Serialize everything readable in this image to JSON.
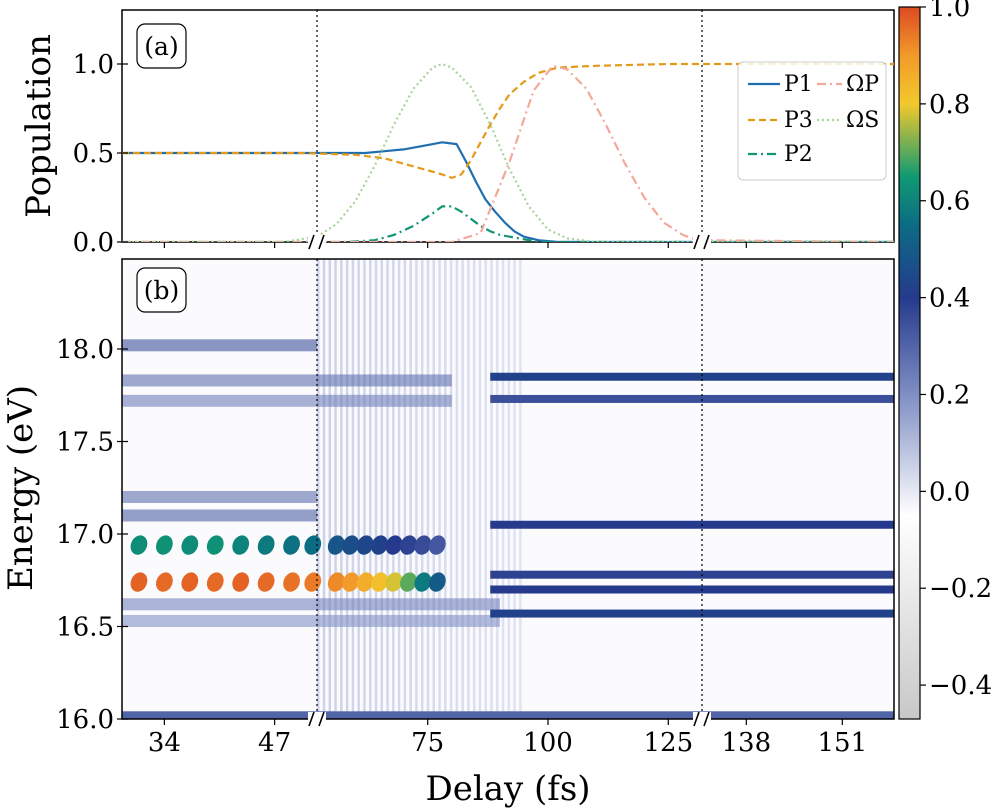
{
  "chart_data": [
    {
      "panel": "a",
      "panel_label": "(a)",
      "type": "line",
      "ylabel": "Population",
      "yticks": [
        "0.0",
        "0.5",
        "1.0"
      ],
      "ylim": [
        0,
        1.3
      ],
      "x_segments": [
        [
          29,
          52
        ],
        [
          52,
          132
        ],
        [
          132,
          158
        ]
      ],
      "x_breaks": [
        52,
        132
      ],
      "grid": false,
      "legend_position": "top-right",
      "legend": {
        "P1": "P1",
        "P3": "P3",
        "P2": "P2",
        "OmegaP": "ΩP",
        "OmegaS": "ΩS"
      },
      "series": [
        {
          "key": "P1",
          "color": "#1f6fb0",
          "dash": "solid",
          "x": [
            29,
            50,
            58,
            62,
            66,
            70,
            74,
            78,
            81,
            83,
            85,
            87,
            89,
            91,
            93,
            95,
            98,
            102,
            110,
            158
          ],
          "y": [
            0.5,
            0.5,
            0.5,
            0.5,
            0.51,
            0.52,
            0.54,
            0.56,
            0.55,
            0.45,
            0.34,
            0.24,
            0.17,
            0.11,
            0.06,
            0.03,
            0.01,
            0.0,
            0.0,
            0.0
          ]
        },
        {
          "key": "P3",
          "color": "#e39a1b",
          "dash": "dashed",
          "x": [
            29,
            50,
            60,
            66,
            70,
            74,
            78,
            80,
            82,
            84,
            86,
            88,
            90,
            92,
            95,
            98,
            102,
            110,
            125,
            158
          ],
          "y": [
            0.5,
            0.5,
            0.49,
            0.47,
            0.44,
            0.41,
            0.38,
            0.36,
            0.38,
            0.46,
            0.56,
            0.66,
            0.75,
            0.83,
            0.9,
            0.95,
            0.98,
            0.99,
            1.0,
            1.0
          ]
        },
        {
          "key": "P2",
          "color": "#109673",
          "dash": "dashdot",
          "x": [
            29,
            58,
            64,
            68,
            72,
            76,
            78,
            80,
            82,
            84,
            86,
            88,
            90,
            94,
            98,
            158
          ],
          "y": [
            0.0,
            0.0,
            0.01,
            0.04,
            0.09,
            0.16,
            0.2,
            0.2,
            0.17,
            0.13,
            0.09,
            0.06,
            0.04,
            0.02,
            0.0,
            0.0
          ]
        },
        {
          "key": "OmegaP",
          "color": "#f2a89a",
          "dash": "dashdot",
          "x": [
            29,
            80,
            86,
            92,
            97,
            101,
            104,
            108,
            112,
            116,
            120,
            124,
            128,
            131,
            158
          ],
          "y": [
            0.0,
            0.0,
            0.05,
            0.45,
            0.85,
            0.99,
            0.97,
            0.86,
            0.66,
            0.44,
            0.25,
            0.11,
            0.04,
            0.01,
            0.0
          ]
        },
        {
          "key": "OmegaS",
          "color": "#a8d49a",
          "dash": "dotted",
          "x": [
            29,
            48,
            52,
            56,
            60,
            64,
            68,
            72,
            76,
            78,
            80,
            84,
            88,
            92,
            96,
            100,
            104,
            110,
            158
          ],
          "y": [
            0.0,
            0.0,
            0.03,
            0.1,
            0.23,
            0.43,
            0.66,
            0.86,
            0.98,
            1.0,
            0.98,
            0.87,
            0.66,
            0.41,
            0.2,
            0.07,
            0.02,
            0.0,
            0.0
          ]
        }
      ]
    },
    {
      "panel": "b",
      "panel_label": "(b)",
      "type": "heatmap",
      "xlabel": "Delay (fs)",
      "ylabel": "Energy (eV)",
      "xticks": [
        34,
        47,
        75,
        100,
        125,
        138,
        151
      ],
      "x_segments": [
        [
          29,
          52
        ],
        [
          52,
          132
        ],
        [
          132,
          158
        ]
      ],
      "x_breaks": [
        52,
        132
      ],
      "yticks": [
        "16.0",
        "16.5",
        "17.0",
        "17.5",
        "18.0"
      ],
      "ylim": [
        16.0,
        18.5
      ],
      "colorbar": {
        "ticks": [
          "1.0",
          "0.8",
          "0.6",
          "0.4",
          "0.2",
          "0.0",
          "−0.2",
          "−0.4"
        ],
        "range": [
          -0.47,
          1.0
        ],
        "colormap_stops": [
          {
            "v": -0.47,
            "color": "#c8c8c8"
          },
          {
            "v": -0.05,
            "color": "#ffffff"
          },
          {
            "v": 0.2,
            "color": "#7f8ec4"
          },
          {
            "v": 0.4,
            "color": "#253a8c"
          },
          {
            "v": 0.55,
            "color": "#0c6c84"
          },
          {
            "v": 0.65,
            "color": "#109a72"
          },
          {
            "v": 0.8,
            "color": "#f2c92c"
          },
          {
            "v": 0.9,
            "color": "#f29a2a"
          },
          {
            "v": 1.0,
            "color": "#dd4a22"
          }
        ]
      },
      "lines": [
        {
          "energy": 17.85,
          "x_from": 88,
          "x_to": 158,
          "value": 0.42
        },
        {
          "energy": 17.73,
          "x_from": 88,
          "x_to": 158,
          "value": 0.35
        },
        {
          "energy": 17.05,
          "x_from": 88,
          "x_to": 158,
          "value": 0.4
        },
        {
          "energy": 16.78,
          "x_from": 88,
          "x_to": 158,
          "value": 0.38
        },
        {
          "energy": 16.7,
          "x_from": 88,
          "x_to": 158,
          "value": 0.4
        },
        {
          "energy": 16.57,
          "x_from": 88,
          "x_to": 158,
          "value": 0.42
        },
        {
          "energy": 16.02,
          "x_from": 29,
          "x_to": 158,
          "value": 0.3
        }
      ],
      "spots": [
        {
          "x": 31,
          "energy": 16.94,
          "value": 0.62
        },
        {
          "x": 34,
          "energy": 16.94,
          "value": 0.63
        },
        {
          "x": 37,
          "energy": 16.94,
          "value": 0.62
        },
        {
          "x": 40,
          "energy": 16.94,
          "value": 0.63
        },
        {
          "x": 43,
          "energy": 16.94,
          "value": 0.6
        },
        {
          "x": 46,
          "energy": 16.94,
          "value": 0.58
        },
        {
          "x": 49,
          "energy": 16.94,
          "value": 0.56
        },
        {
          "x": 51.5,
          "energy": 16.94,
          "value": 0.55
        },
        {
          "x": 31,
          "energy": 16.74,
          "value": 0.97
        },
        {
          "x": 34,
          "energy": 16.74,
          "value": 0.96
        },
        {
          "x": 37,
          "energy": 16.74,
          "value": 0.97
        },
        {
          "x": 40,
          "energy": 16.74,
          "value": 0.96
        },
        {
          "x": 43,
          "energy": 16.74,
          "value": 0.97
        },
        {
          "x": 46,
          "energy": 16.74,
          "value": 0.96
        },
        {
          "x": 49,
          "energy": 16.74,
          "value": 0.95
        },
        {
          "x": 51.5,
          "energy": 16.74,
          "value": 0.94
        },
        {
          "x": 56,
          "energy": 16.74,
          "value": 0.92
        },
        {
          "x": 59,
          "energy": 16.74,
          "value": 0.9
        },
        {
          "x": 62,
          "energy": 16.74,
          "value": 0.86
        },
        {
          "x": 65,
          "energy": 16.74,
          "value": 0.82
        },
        {
          "x": 68,
          "energy": 16.74,
          "value": 0.78
        },
        {
          "x": 71,
          "energy": 16.74,
          "value": 0.7
        },
        {
          "x": 74,
          "energy": 16.74,
          "value": 0.58
        },
        {
          "x": 77,
          "energy": 16.74,
          "value": 0.5
        },
        {
          "x": 56,
          "energy": 16.94,
          "value": 0.48
        },
        {
          "x": 59,
          "energy": 16.94,
          "value": 0.46
        },
        {
          "x": 62,
          "energy": 16.94,
          "value": 0.44
        },
        {
          "x": 65,
          "energy": 16.94,
          "value": 0.42
        },
        {
          "x": 68,
          "energy": 16.94,
          "value": 0.4
        },
        {
          "x": 71,
          "energy": 16.94,
          "value": 0.38
        },
        {
          "x": 74,
          "energy": 16.94,
          "value": 0.36
        },
        {
          "x": 77,
          "energy": 16.94,
          "value": 0.33
        }
      ],
      "ripples": [
        {
          "energy": 18.02,
          "x_from": 29,
          "x_to": 52,
          "value": 0.38
        },
        {
          "energy": 17.83,
          "x_from": 29,
          "x_to": 80,
          "value": 0.3
        },
        {
          "energy": 17.72,
          "x_from": 29,
          "x_to": 80,
          "value": 0.26
        },
        {
          "energy": 17.2,
          "x_from": 29,
          "x_to": 52,
          "value": 0.3
        },
        {
          "energy": 17.1,
          "x_from": 29,
          "x_to": 52,
          "value": 0.34
        },
        {
          "energy": 16.62,
          "x_from": 29,
          "x_to": 90,
          "value": 0.25
        },
        {
          "energy": 16.53,
          "x_from": 29,
          "x_to": 90,
          "value": 0.22
        }
      ]
    }
  ]
}
